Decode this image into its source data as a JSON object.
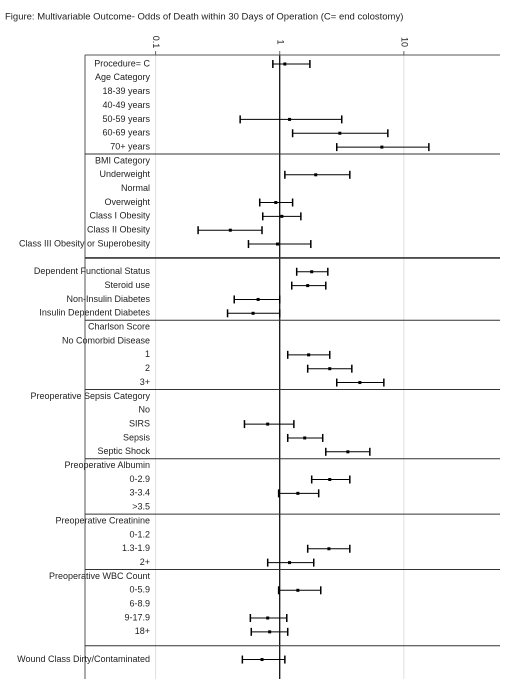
{
  "chart_data": {
    "type": "forest",
    "title": "Figure: Multivariable Outcome- Odds of Death within 30 Days of Operation (C= end colostomy)",
    "xscale": "log",
    "xlim": [
      0.027,
      59.5
    ],
    "xticks": [
      0.1,
      1,
      10
    ],
    "reference": 1,
    "color": "#000000",
    "groups": [
      {
        "rows": [
          {
            "label": "Procedure= C",
            "estimate": 1.1,
            "lower": 0.88,
            "upper": 1.75
          },
          {
            "label": "Age Category",
            "estimate": null,
            "lower": null,
            "upper": null
          },
          {
            "label": "18-39 years",
            "estimate": null,
            "lower": null,
            "upper": null
          },
          {
            "label": "40-49 years",
            "estimate": null,
            "lower": null,
            "upper": null
          },
          {
            "label": "50-59 years",
            "estimate": 1.2,
            "lower": 0.48,
            "upper": 3.16
          },
          {
            "label": "60-69 years",
            "estimate": 3.05,
            "lower": 1.27,
            "upper": 7.43
          },
          {
            "label": "70+ years",
            "estimate": 6.65,
            "lower": 2.88,
            "upper": 15.9
          }
        ]
      },
      {
        "rows": [
          {
            "label": "BMI Category",
            "estimate": null,
            "lower": null,
            "upper": null
          },
          {
            "label": "Underweight",
            "estimate": 1.95,
            "lower": 1.1,
            "upper": 3.67
          },
          {
            "label": "Normal",
            "estimate": null,
            "lower": null,
            "upper": null
          },
          {
            "label": "Overweight",
            "estimate": 0.93,
            "lower": 0.69,
            "upper": 1.27
          },
          {
            "label": "Class I Obesity",
            "estimate": 1.04,
            "lower": 0.73,
            "upper": 1.48
          },
          {
            "label": "Class II Obesity",
            "estimate": 0.4,
            "lower": 0.22,
            "upper": 0.72
          },
          {
            "label": "Class III Obesity or Superobesity",
            "estimate": 0.96,
            "lower": 0.56,
            "upper": 1.78
          }
        ]
      },
      {
        "rows": [
          {
            "label": "Dependent Functional Status",
            "estimate": 1.81,
            "lower": 1.37,
            "upper": 2.44
          },
          {
            "label": "Steroid use",
            "estimate": 1.68,
            "lower": 1.25,
            "upper": 2.35
          },
          {
            "label": "Non-Insulin Diabetes",
            "estimate": 0.67,
            "lower": 0.43,
            "upper": 1.0
          },
          {
            "label": "Insulin Dependent Diabetes",
            "estimate": 0.61,
            "lower": 0.38,
            "upper": 1.0
          }
        ]
      },
      {
        "rows": [
          {
            "label": "Charlson Score",
            "estimate": null,
            "lower": null,
            "upper": null
          },
          {
            "label": "No Comorbid Disease",
            "estimate": null,
            "lower": null,
            "upper": null
          },
          {
            "label": "1",
            "estimate": 1.71,
            "lower": 1.16,
            "upper": 2.53
          },
          {
            "label": "2",
            "estimate": 2.53,
            "lower": 1.68,
            "upper": 3.81
          },
          {
            "label": "3+",
            "estimate": 4.42,
            "lower": 2.88,
            "upper": 6.9
          }
        ]
      },
      {
        "rows": [
          {
            "label": "Preoperative Sepsis Category",
            "estimate": null,
            "lower": null,
            "upper": null
          },
          {
            "label": "No",
            "estimate": null,
            "lower": null,
            "upper": null
          },
          {
            "label": "SIRS",
            "estimate": 0.8,
            "lower": 0.52,
            "upper": 1.3
          },
          {
            "label": "Sepsis",
            "estimate": 1.59,
            "lower": 1.16,
            "upper": 2.22
          },
          {
            "label": "Septic Shock",
            "estimate": 3.54,
            "lower": 2.35,
            "upper": 5.32
          }
        ]
      },
      {
        "rows": [
          {
            "label": "Preoperative Albumin",
            "estimate": null,
            "lower": null,
            "upper": null
          },
          {
            "label": "0-2.9",
            "estimate": 2.53,
            "lower": 1.81,
            "upper": 3.67
          },
          {
            "label": "3-3.4",
            "estimate": 1.4,
            "lower": 0.98,
            "upper": 2.06
          },
          {
            "label": ">3.5",
            "estimate": null,
            "lower": null,
            "upper": null
          }
        ]
      },
      {
        "rows": [
          {
            "label": "Preoperative Creatinine",
            "estimate": null,
            "lower": null,
            "upper": null
          },
          {
            "label": "0-1.2",
            "estimate": null,
            "lower": null,
            "upper": null
          },
          {
            "label": "1.3-1.9",
            "estimate": 2.49,
            "lower": 1.68,
            "upper": 3.67
          },
          {
            "label": "2+",
            "estimate": 1.2,
            "lower": 0.8,
            "upper": 1.88
          }
        ]
      },
      {
        "rows": [
          {
            "label": "Preoperative WBC Count",
            "estimate": null,
            "lower": null,
            "upper": null
          },
          {
            "label": "0-5.9",
            "estimate": 1.4,
            "lower": 0.98,
            "upper": 2.14
          },
          {
            "label": "6-8.9",
            "estimate": null,
            "lower": null,
            "upper": null
          },
          {
            "label": "9-17.9",
            "estimate": 0.8,
            "lower": 0.58,
            "upper": 1.14
          },
          {
            "label": "18+",
            "estimate": 0.83,
            "lower": 0.59,
            "upper": 1.16
          }
        ]
      },
      {
        "rows": [
          {
            "label": "Wound Class Dirty/Contaminated",
            "estimate": 0.72,
            "lower": 0.5,
            "upper": 1.1
          }
        ]
      }
    ]
  }
}
